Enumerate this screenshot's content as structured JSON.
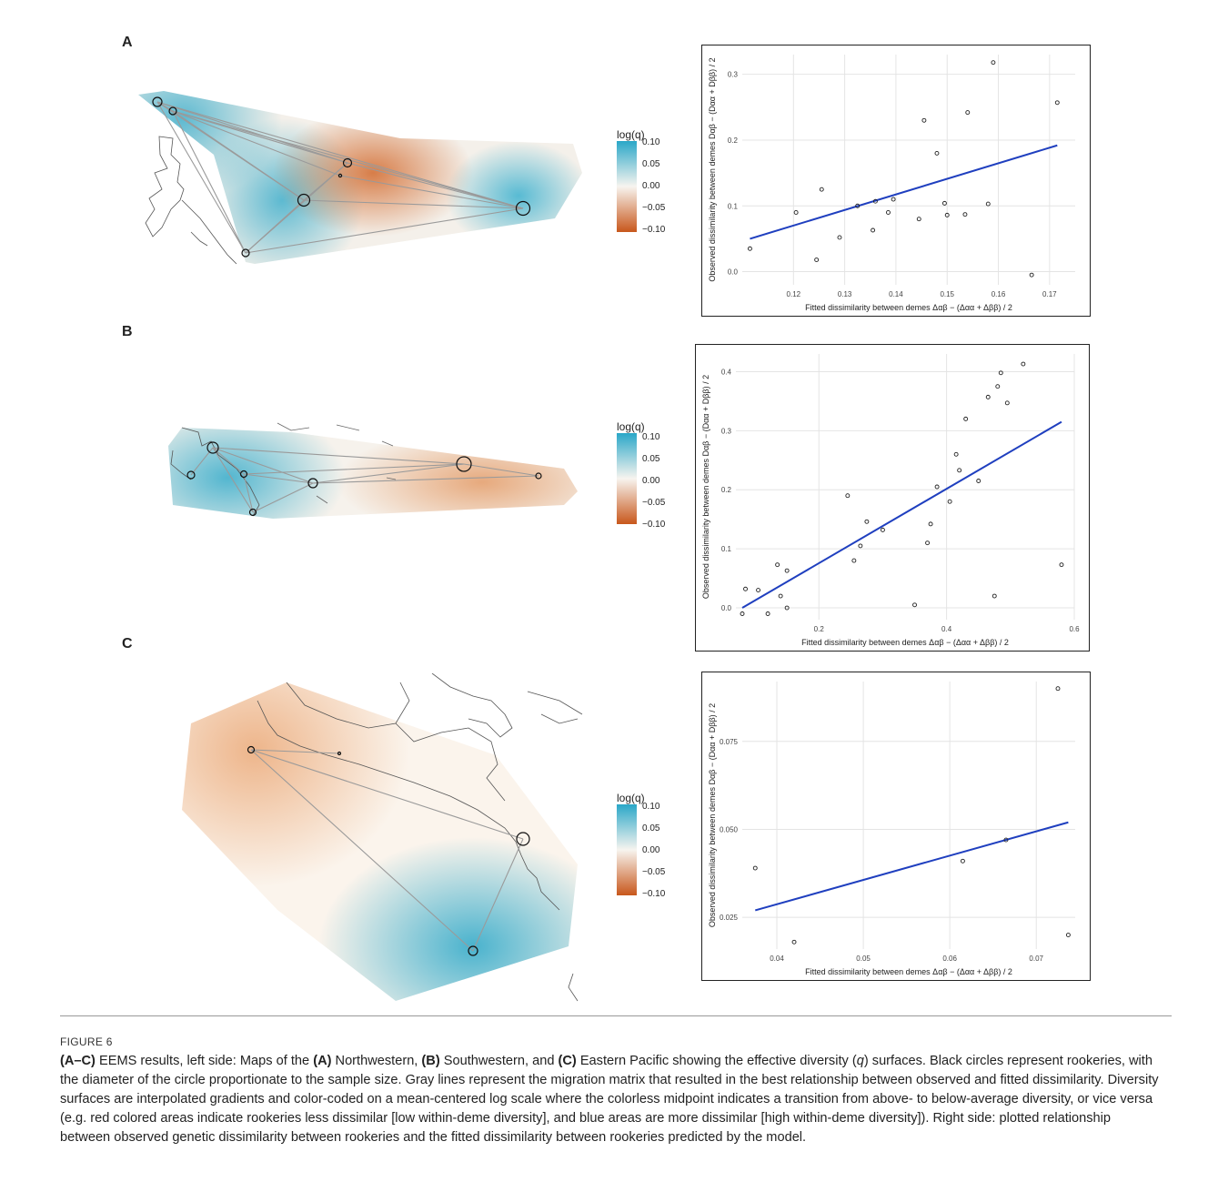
{
  "panels": [
    {
      "letter": "A"
    },
    {
      "letter": "B"
    },
    {
      "letter": "C"
    }
  ],
  "legend": {
    "title": "log(q)",
    "ticks": [
      "0.10",
      "0.05",
      "0.00",
      "−0.05",
      "−0.10"
    ],
    "colors": {
      "high": "#2aa7c8",
      "mid": "#f7f4ef",
      "low": "#c8571c"
    }
  },
  "chart_data": [
    {
      "type": "scatter",
      "panel": "A",
      "xlabel": "Fitted dissimilarity between demes  Δαβ − (Δαα + Δββ) / 2",
      "ylabel": "Observed dissimilarity between demes  Dαβ − (Dαα + Dββ) / 2",
      "xlim": [
        0.11,
        0.175
      ],
      "ylim": [
        -0.02,
        0.33
      ],
      "xticks": [
        0.12,
        0.13,
        0.14,
        0.15,
        0.16,
        0.17
      ],
      "xticklabels": [
        "0.12",
        "0.13",
        "0.14",
        "0.15",
        "0.16",
        "0.17"
      ],
      "yticks": [
        0.0,
        0.1,
        0.2,
        0.3
      ],
      "yticklabels": [
        "0.0",
        "0.1",
        "0.2",
        "0.3"
      ],
      "points": [
        [
          0.1115,
          0.035
        ],
        [
          0.1205,
          0.09
        ],
        [
          0.1245,
          0.018
        ],
        [
          0.1255,
          0.125
        ],
        [
          0.129,
          0.052
        ],
        [
          0.1325,
          0.1
        ],
        [
          0.1355,
          0.063
        ],
        [
          0.136,
          0.107
        ],
        [
          0.1385,
          0.09
        ],
        [
          0.1395,
          0.11
        ],
        [
          0.1445,
          0.08
        ],
        [
          0.1455,
          0.23
        ],
        [
          0.148,
          0.18
        ],
        [
          0.1495,
          0.104
        ],
        [
          0.15,
          0.086
        ],
        [
          0.1535,
          0.087
        ],
        [
          0.154,
          0.242
        ],
        [
          0.158,
          0.103
        ],
        [
          0.159,
          0.318
        ],
        [
          0.1665,
          -0.005
        ],
        [
          0.1715,
          0.257
        ]
      ],
      "fit": {
        "x": [
          0.1115,
          0.1715
        ],
        "y": [
          0.05,
          0.192
        ]
      },
      "grid": true
    },
    {
      "type": "scatter",
      "panel": "B",
      "xlabel": "Fitted dissimilarity between demes  Δαβ − (Δαα + Δββ) / 2",
      "ylabel": "Observed dissimilarity between demes  Dαβ − (Dαα + Dββ) / 2",
      "xlim": [
        0.07,
        0.6
      ],
      "ylim": [
        -0.02,
        0.43
      ],
      "xticks": [
        0.2,
        0.4,
        0.6
      ],
      "xticklabels": [
        "0.2",
        "0.4",
        "0.6"
      ],
      "yticks": [
        0.0,
        0.1,
        0.2,
        0.3,
        0.4
      ],
      "yticklabels": [
        "0.0",
        "0.1",
        "0.2",
        "0.3",
        "0.4"
      ],
      "points": [
        [
          0.08,
          -0.01
        ],
        [
          0.085,
          0.032
        ],
        [
          0.105,
          0.03
        ],
        [
          0.12,
          -0.01
        ],
        [
          0.135,
          0.073
        ],
        [
          0.14,
          0.02
        ],
        [
          0.15,
          0.0
        ],
        [
          0.15,
          0.063
        ],
        [
          0.245,
          0.19
        ],
        [
          0.255,
          0.08
        ],
        [
          0.265,
          0.105
        ],
        [
          0.275,
          0.146
        ],
        [
          0.3,
          0.132
        ],
        [
          0.35,
          0.005
        ],
        [
          0.37,
          0.11
        ],
        [
          0.375,
          0.142
        ],
        [
          0.385,
          0.205
        ],
        [
          0.405,
          0.18
        ],
        [
          0.415,
          0.26
        ],
        [
          0.42,
          0.233
        ],
        [
          0.43,
          0.32
        ],
        [
          0.45,
          0.215
        ],
        [
          0.465,
          0.357
        ],
        [
          0.475,
          0.02
        ],
        [
          0.48,
          0.375
        ],
        [
          0.485,
          0.398
        ],
        [
          0.495,
          0.347
        ],
        [
          0.52,
          0.413
        ],
        [
          0.58,
          0.073
        ]
      ],
      "fit": {
        "x": [
          0.08,
          0.58
        ],
        "y": [
          0.0,
          0.315
        ]
      },
      "grid": true
    },
    {
      "type": "scatter",
      "panel": "C",
      "xlabel": "Fitted dissimilarity between demes  Δαβ − (Δαα + Δββ) / 2",
      "ylabel": "Observed dissimilarity between demes  Dαβ − (Dαα + Dββ) / 2",
      "xlim": [
        0.036,
        0.0745
      ],
      "ylim": [
        0.016,
        0.092
      ],
      "xticks": [
        0.04,
        0.05,
        0.06,
        0.07
      ],
      "xticklabels": [
        "0.04",
        "0.05",
        "0.06",
        "0.07"
      ],
      "yticks": [
        0.025,
        0.05,
        0.075
      ],
      "yticklabels": [
        "0.025",
        "0.050",
        "0.075"
      ],
      "points": [
        [
          0.0375,
          0.039
        ],
        [
          0.042,
          0.018
        ],
        [
          0.0615,
          0.041
        ],
        [
          0.0665,
          0.047
        ],
        [
          0.0725,
          0.09
        ],
        [
          0.0737,
          0.02
        ]
      ],
      "fit": {
        "x": [
          0.0375,
          0.0737
        ],
        "y": [
          0.027,
          0.052
        ]
      },
      "grid": true
    }
  ],
  "caption": {
    "label": "FIGURE 6",
    "segments": [
      {
        "t": "(A–C)",
        "s": "b"
      },
      {
        "t": " EEMS results, left side: Maps of the ",
        "s": ""
      },
      {
        "t": "(A)",
        "s": "b"
      },
      {
        "t": " Northwestern, ",
        "s": ""
      },
      {
        "t": "(B)",
        "s": "b"
      },
      {
        "t": " Southwestern, and ",
        "s": ""
      },
      {
        "t": "(C)",
        "s": "b"
      },
      {
        "t": " Eastern Pacific showing the effective diversity (",
        "s": ""
      },
      {
        "t": "q",
        "s": "i"
      },
      {
        "t": ") surfaces. Black circles represent rookeries, with the diameter of the circle proportionate to the sample size. Gray lines represent the migration matrix that resulted in the best relationship between observed and fitted dissimilarity. Diversity surfaces are interpolated gradients and color-coded on a mean-centered log scale where the colorless midpoint indicates a transition from above- to below-average diversity, or vice versa (e.g. red colored areas indicate rookeries less dissimilar [low within-deme diversity], and blue areas are more dissimilar [high within-deme diversity]). Right side: plotted relationship between observed genetic dissimilarity between rookeries and the fitted dissimilarity between rookeries predicted by the model.",
        "s": ""
      }
    ]
  }
}
